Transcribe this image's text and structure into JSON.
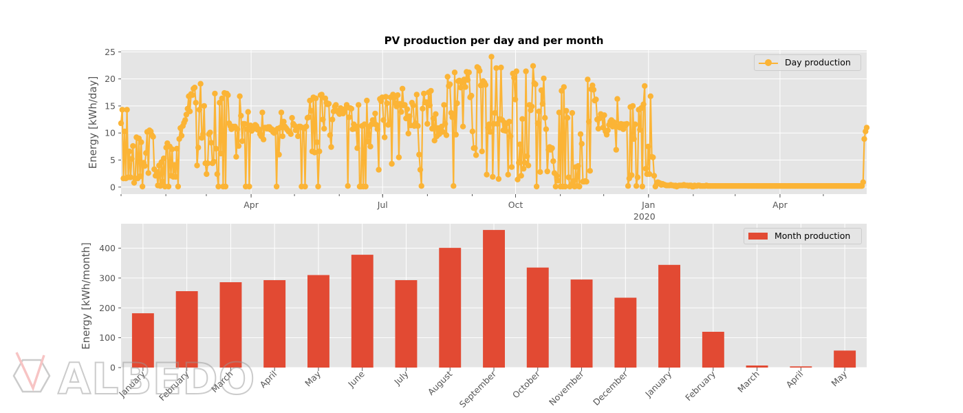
{
  "title": "PV production per day and per month",
  "watermark": {
    "text": "ALBEDO",
    "logo": "albedo-logo-icon"
  },
  "colors": {
    "day": "#FBB436",
    "month": "#E24A33",
    "plot_bg": "#E5E5E5",
    "grid": "#FFFFFF",
    "tick": "#555555"
  },
  "chart_data": [
    {
      "type": "line",
      "title": "PV production per day and per month",
      "ylabel": "Energy [kWh/day]",
      "xlabel": "",
      "x_start": "2019-01-01",
      "x_end": "2020-05-31",
      "ylim": [
        -1.3,
        25.3
      ],
      "yticks": [
        0,
        5,
        10,
        15,
        20,
        25
      ],
      "xticks": [
        {
          "date": "2019-04-01",
          "label": "Apr"
        },
        {
          "date": "2019-07-01",
          "label": "Jul"
        },
        {
          "date": "2019-10-01",
          "label": "Oct"
        },
        {
          "date": "2020-01-01",
          "label": "Jan",
          "sublabel": "2020"
        },
        {
          "date": "2020-04-01",
          "label": "Apr"
        }
      ],
      "grid": true,
      "legend": "top-right",
      "series": [
        {
          "name": "Day production",
          "marker": "circle",
          "values": [
            11.8,
            14.3,
            1.6,
            10.3,
            1.6,
            14.3,
            1.8,
            6.6,
            1.8,
            5.2,
            7.6,
            0.8,
            1.6,
            9.2,
            1.6,
            9.0,
            2.0,
            8.3,
            0.1,
            4.5,
            3.9,
            6.3,
            10.2,
            2.6,
            10.5,
            10.3,
            9.6,
            9.3,
            3.3,
            2.1,
            2.8,
            0.3,
            4.0,
            0.2,
            4.6,
            1.0,
            5.3,
            0.1,
            7.3,
            8.1,
            0.1,
            7.5,
            2.1,
            7.0,
            1.9,
            4.1,
            1.9,
            7.1,
            0.1,
            8.9,
            10.9,
            9.5,
            11.3,
            11.9,
            12.4,
            13.4,
            14.5,
            16.8,
            14.0,
            17.2,
            17.0,
            18.2,
            18.4,
            15.6,
            4.0,
            7.3,
            14.3,
            19.1,
            9.1,
            9.8,
            15.0,
            4.4,
            2.4,
            4.4,
            9.8,
            10.1,
            8.2,
            4.4,
            4.7,
            17.3,
            7.1,
            2.4,
            0.1,
            15.6,
            6.2,
            16.4,
            0.1,
            17.4,
            0.1,
            17.3,
            17.0,
            11.8,
            11.3,
            10.7,
            11.2,
            11.0,
            11.2,
            5.6,
            10.7,
            7.6,
            16.8,
            13.2,
            8.5,
            11.7,
            11.7,
            0.1,
            10.7,
            13.9,
            0.1,
            11.4,
            10.4,
            10.7,
            10.8,
            11.5,
            11.3,
            10.6,
            10.7,
            9.8,
            9.4,
            13.8,
            8.8,
            11.0,
            11.0,
            10.8,
            11.1,
            11.1,
            10.6,
            10.7,
            10.2,
            10.0,
            10.5,
            0.1,
            10.8,
            6.0,
            11.0,
            13.8,
            9.4,
            12.1,
            11.2,
            10.9,
            10.6,
            10.3,
            10.2,
            9.8,
            12.8,
            11.7,
            11.4,
            10.5,
            11.1,
            9.4,
            11.2,
            11.2,
            0.1,
            11.0,
            10.8,
            0.1,
            11.2,
            12.8,
            12.9,
            16.0,
            14.1,
            6.6,
            16.6,
            6.4,
            16.4,
            8.3,
            0.1,
            6.6,
            17.0,
            17.1,
            12.5,
            10.8,
            16.4,
            15.6,
            15.3,
            15.4,
            9.6,
            7.4,
            12.5,
            14.0,
            14.9,
            15.2,
            14.1,
            13.8,
            13.5,
            14.6,
            14.2,
            13.6,
            14.0,
            14.5,
            15.2,
            0.2,
            12.9,
            14.6,
            14.5,
            10.7,
            11.6,
            10.8,
            11.2,
            7.2,
            15.2,
            0.1,
            0.1,
            11.3,
            0.1,
            11.6,
            0.1,
            16.0,
            8.4,
            11.2,
            7.5,
            11.6,
            12.4,
            11.7,
            13.6,
            11.5,
            10.7,
            3.2,
            16.3,
            15.9,
            16.6,
            12.4,
            9.2,
            16.7,
            15.5,
            11.5,
            11.8,
            16.6,
            4.3,
            17.1,
            16.5,
            15.5,
            14.9,
            17.0,
            5.5,
            15.4,
            13.9,
            18.2,
            15.1,
            15.2,
            12.7,
            14.4,
            9.9,
            13.1,
            11.4,
            15.6,
            15.1,
            11.3,
            11.8,
            17.1,
            11.3,
            6.0,
            3.2,
            0.2,
            14.5,
            17.3,
            15.6,
            15.7,
            11.7,
            17.5,
            15.1,
            17.8,
            10.8,
            12.7,
            8.6,
            13.5,
            9.4,
            10.9,
            9.8,
            10.1,
            11.2,
            10.2,
            15.2,
            11.7,
            9.6,
            20.4,
            18.7,
            19.0,
            13.7,
            12.9,
            0.2,
            21.2,
            9.7,
            15.5,
            19.6,
            19.7,
            18.4,
            19.3,
            11.2,
            19.9,
            18.5,
            21.3,
            19.8,
            21.2,
            16.6,
            16.9,
            10.3,
            7.2,
            7.2,
            5.9,
            22.2,
            22.0,
            21.5,
            18.8,
            6.6,
            19.6,
            19.3,
            18.9,
            2.3,
            11.0,
            11.6,
            10.2,
            24.1,
            1.9,
            11.7,
            13.7,
            22.0,
            11.7,
            1.5,
            12.6,
            22.1,
            12.4,
            10.5,
            11.9,
            10.4,
            11.8,
            2.3,
            12.1,
            9.4,
            3.7,
            21.0,
            20.2,
            16.2,
            21.4,
            1.4,
            4.5,
            7.9,
            2.1,
            12.6,
            3.4,
            4.5,
            21.4,
            5.7,
            4.0,
            15.2,
            14.2,
            14.9,
            22.4,
            19.2,
            19.0,
            0.1,
            11.8,
            14.0,
            2.8,
            17.9,
            15.4,
            20.1,
            12.8,
            10.7,
            2.9,
            6.9,
            7.4,
            6.9,
            7.2,
            4.8,
            2.6,
            0.1,
            2.1,
            1.2,
            13.8,
            0.1,
            17.8,
            0.1,
            18.5,
            0.1,
            14.1,
            12.8,
            1.8,
            0.1,
            0.4,
            13.7,
            1.1,
            0.1,
            3.7,
            0.2,
            3.9,
            0.1,
            9.8,
            8.0,
            1.0,
            1.0,
            1.1,
            1.0,
            19.9,
            12.1,
            3.0,
            18.1,
            18.8,
            18.0,
            16.0,
            16.2,
            12.5,
            10.8,
            12.7,
            13.5,
            13.1,
            11.0,
            13.3,
            10.3,
            9.7,
            10.5,
            11.5,
            12.1,
            12.4,
            11.2,
            12.0,
            11.2,
            6.9,
            16.3,
            11.2,
            11.0,
            11.7,
            11.6,
            10.7,
            11.6,
            11.4,
            11.7,
            0.2,
            1.6,
            14.8,
            2.2,
            15.0,
            8.9,
            11.6,
            0.2,
            1.8,
            14.3,
            10.6,
            14.6,
            0.1,
            15.3,
            18.7,
            3.4,
            2.4,
            7.5,
            2.4,
            16.8,
            5.6,
            5.5,
            2.1,
            0.1,
            0.5,
            0.9,
            0.8,
            0.7,
            0.4,
            0.6,
            0.5,
            0.4,
            0.3,
            0.3,
            0.3,
            0.3,
            0.4,
            0.3,
            0.3,
            0.2,
            0.3,
            0.1,
            0.2,
            0.3,
            0.3,
            0.3,
            0.3,
            0.4,
            0.3,
            0.3,
            0.3,
            0.2,
            0.3,
            0.3,
            0.1,
            0.1,
            0.3,
            0.2,
            0.2,
            0.3,
            0.3,
            0.2,
            0.2,
            0.2,
            0.2,
            0.2,
            0.3,
            0.2,
            0.2,
            0.2,
            0.2,
            0.2,
            0.2,
            0.2,
            0.2,
            0.2,
            0.2,
            0.2,
            0.2,
            0.2,
            0.2,
            0.2,
            0.2,
            0.2,
            0.2,
            0.2,
            0.2,
            0.2,
            0.2,
            0.2,
            0.2,
            0.2,
            0.2,
            0.2,
            0.2,
            0.2,
            0.2,
            0.2,
            0.2,
            0.2,
            0.2,
            0.2,
            0.2,
            0.2,
            0.2,
            0.2,
            0.2,
            0.2,
            0.2,
            0.2,
            0.2,
            0.2,
            0.2,
            0.2,
            0.2,
            0.2,
            0.2,
            0.2,
            0.2,
            0.2,
            0.2,
            0.2,
            0.2,
            0.2,
            0.2,
            0.2,
            0.2,
            0.2,
            0.2,
            0.2,
            0.2,
            0.2,
            0.2,
            0.2,
            0.2,
            0.2,
            0.2,
            0.2,
            0.2,
            0.2,
            0.2,
            0.2,
            0.2,
            0.2,
            0.2,
            0.2,
            0.2,
            0.2,
            0.2,
            0.2,
            0.2,
            0.2,
            0.2,
            0.2,
            0.2,
            0.2,
            0.2,
            0.2,
            0.2,
            0.2,
            0.2,
            0.2,
            0.2,
            0.2,
            0.2,
            0.2,
            0.2,
            0.2,
            0.2,
            0.2,
            0.2,
            0.2,
            0.2,
            0.2,
            0.2,
            0.2,
            0.2,
            0.2,
            0.2,
            0.2,
            0.2,
            0.2,
            0.2,
            0.2,
            0.2,
            0.2,
            0.2,
            0.2,
            0.2,
            0.2,
            0.2,
            0.2,
            0.2,
            0.2,
            0.2,
            0.2,
            0.2,
            0.2,
            0.9,
            8.9,
            10.3,
            11.0
          ]
        }
      ]
    },
    {
      "type": "bar",
      "ylabel": "Energy [kWh/month]",
      "xlabel": "",
      "ylim": [
        0,
        482
      ],
      "yticks": [
        0,
        100,
        200,
        300,
        400
      ],
      "grid": true,
      "legend": "top-right",
      "categories": [
        "January",
        "February",
        "March",
        "April",
        "May",
        "June",
        "July",
        "August",
        "September",
        "October",
        "November",
        "December",
        "January",
        "February",
        "March",
        "April",
        "May"
      ],
      "series": [
        {
          "name": "Month production",
          "values": [
            182,
            256,
            286,
            293,
            310,
            378,
            293,
            401,
            461,
            335,
            295,
            234,
            344,
            120,
            7,
            4,
            57
          ]
        }
      ]
    }
  ]
}
